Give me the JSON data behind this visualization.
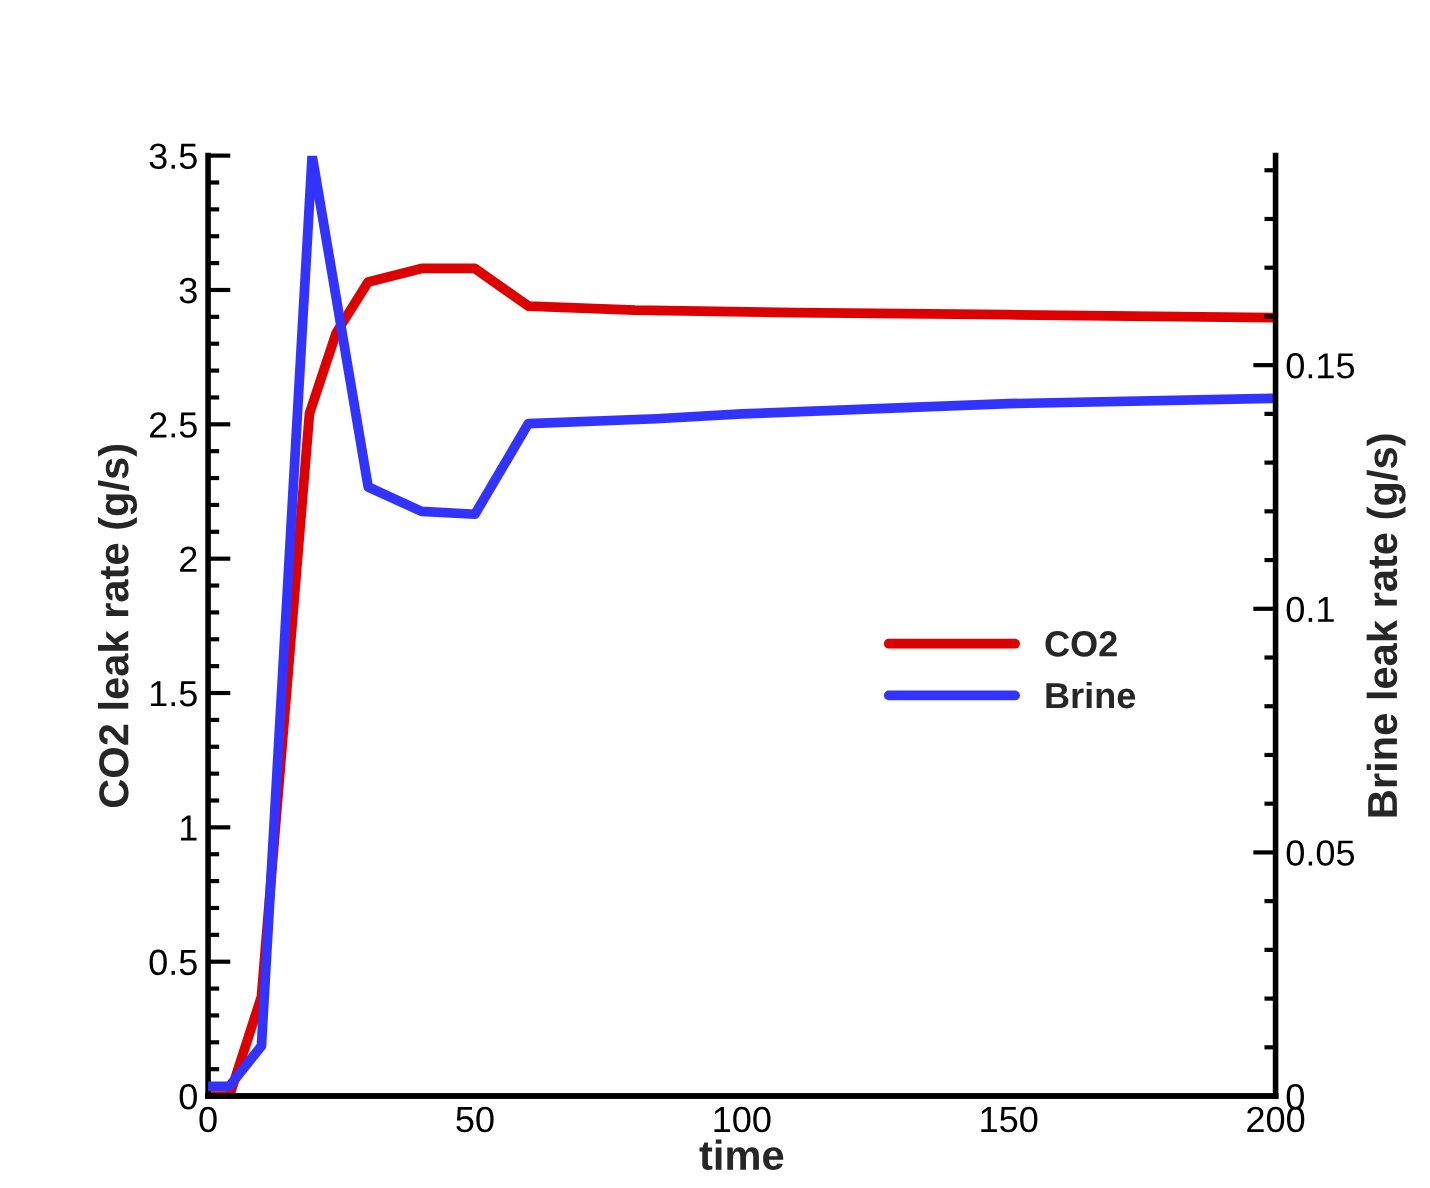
{
  "chart_data": {
    "type": "line",
    "xlabel": "time",
    "ylabel": "CO2 leak rate (g/s)",
    "y2label": "Brine leak rate (g/s)",
    "series": [
      {
        "name": "CO2",
        "color": "#dd0000",
        "x": [
          0,
          4,
          10,
          19,
          24,
          30,
          40,
          50,
          60,
          80,
          110,
          150,
          200
        ],
        "values": [
          0,
          0,
          0.37,
          2.54,
          2.84,
          3.03,
          3.08,
          3.08,
          2.94,
          2.925,
          2.916,
          2.908,
          2.897
        ]
      },
      {
        "name": "Brine",
        "color": "#3333ff",
        "axis": "y2",
        "x": [
          0,
          4,
          10,
          19.5,
          30,
          40,
          50,
          60,
          84,
          100,
          150,
          200
        ],
        "values": [
          0.002,
          0.002,
          0.0103,
          0.193,
          0.125,
          0.12,
          0.1194,
          0.138,
          0.139,
          0.14,
          0.1421,
          0.1432
        ]
      }
    ],
    "xlim": [
      0,
      200
    ],
    "xticks": [
      0,
      50,
      100,
      150,
      200
    ],
    "ylim": [
      0,
      3.5
    ],
    "yticks": [
      0,
      0.5,
      1,
      1.5,
      2,
      2.5,
      3,
      3.5
    ],
    "y2lim": [
      0,
      0.193
    ],
    "y2ticks": [
      0,
      0.05,
      0.1,
      0.15
    ],
    "grid": false,
    "legend": "right",
    "marker": "none",
    "line_style": "solid"
  }
}
